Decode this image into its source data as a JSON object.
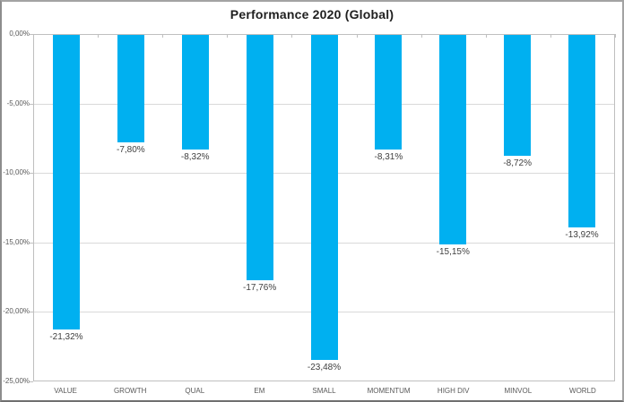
{
  "title": "Performance 2020 (Global)",
  "colors": {
    "bar": "#00B0F0",
    "gridline": "#D9D9D9",
    "axis": "#BFBFBF",
    "data_label": "#3F3F3F",
    "tick_label": "#595959",
    "title": "#1F1F1F",
    "frame_border": "#A3A3A3",
    "background": "#FFFFFF"
  },
  "chart_data": {
    "type": "bar",
    "title": "Performance 2020 (Global)",
    "categories": [
      "VALUE",
      "GROWTH",
      "QUAL",
      "EM",
      "SMALL",
      "MOMENTUM",
      "HIGH DIV",
      "MINVOL",
      "WORLD"
    ],
    "values": [
      -21.32,
      -7.8,
      -8.32,
      -17.76,
      -23.48,
      -8.31,
      -15.15,
      -8.72,
      -13.92
    ],
    "data_labels": [
      "-21,32%",
      "-7,80%",
      "-8,32%",
      "-17,76%",
      "-23,48%",
      "-8,31%",
      "-15,15%",
      "-8,72%",
      "-13,92%"
    ],
    "xlabel": "",
    "ylabel": "",
    "ylim": [
      -25,
      0
    ],
    "y_ticks": [
      "0,00%",
      "-5,00%",
      "-10,00%",
      "-15,00%",
      "-20,00%",
      "-25,00%"
    ],
    "grid": true,
    "legend": false,
    "orientation": "vertical",
    "bars_direction": "negative-down"
  }
}
